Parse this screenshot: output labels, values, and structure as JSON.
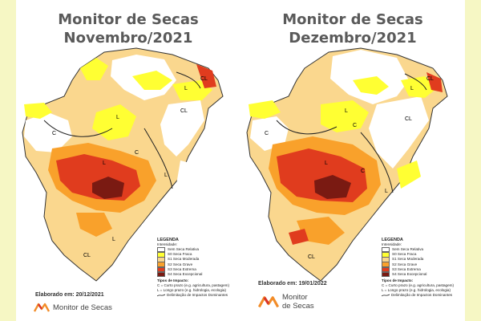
{
  "colors": {
    "side_bar": "#f6f7c4",
    "none": "#ffffff",
    "s0": "#ffff33",
    "s1": "#fad78e",
    "s2": "#f9a12b",
    "s3": "#e03c1e",
    "s4": "#7a1a12"
  },
  "legend": {
    "title": "LEGENDA",
    "subtitle": "Intensidade:",
    "items": [
      {
        "label": "Sem Seca Relativa",
        "color": "#ffffff"
      },
      {
        "label": "S0 Seca Fraca",
        "color": "#ffff33"
      },
      {
        "label": "S1 Seca Moderada",
        "color": "#fad78e"
      },
      {
        "label": "S2 Seca Grave",
        "color": "#f9a12b"
      },
      {
        "label": "S3 Seca Extrema",
        "color": "#e03c1e"
      },
      {
        "label": "S4 Seca Excepcional",
        "color": "#7a1a12"
      }
    ],
    "impact_title": "Tipos de Impacto:",
    "impact_c": "C = Curto prazo (e.g. agricultura, pastagem)",
    "impact_l": "L = Longo prazo (e.g. hidrologia, ecologia)",
    "impact_line": "Delimitação de Impactos Dominantes"
  },
  "panels": [
    {
      "title_line1": "Monitor de Secas",
      "title_line2": "Novembro/2021",
      "elaborated": "Elaborado em: 20/12/2021",
      "logo_text": "Monitor de Secas",
      "labels": [
        "CL",
        "L",
        "C",
        "L",
        "L",
        "C",
        "L",
        "CL",
        "L",
        "CL"
      ]
    },
    {
      "title_line1": "Monitor de Secas",
      "title_line2": "Dezembro/2021",
      "elaborated": "Elaborado em: 19/01/2022",
      "logo_text_1": "Monitor",
      "logo_text_2": "de Secas",
      "labels": [
        "CL",
        "L",
        "C",
        "C",
        "L",
        "L",
        "C",
        "L",
        "CL",
        "CL"
      ]
    }
  ]
}
